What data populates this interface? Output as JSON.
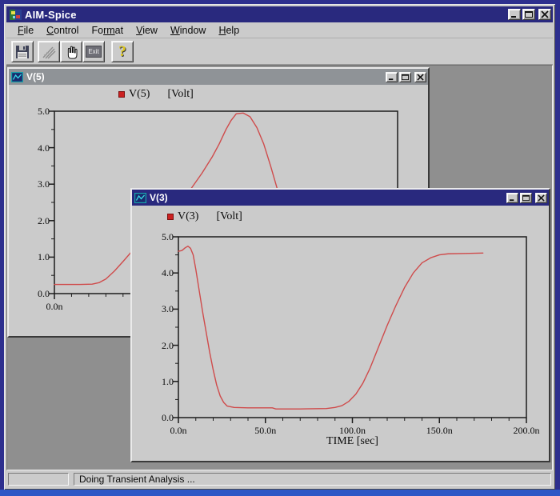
{
  "app": {
    "title": "AIM-Spice"
  },
  "menu": {
    "items": [
      {
        "pre": "",
        "key": "F",
        "post": "ile"
      },
      {
        "pre": "",
        "key": "C",
        "post": "ontrol"
      },
      {
        "pre": "Fo",
        "key": "rm",
        "post": "at"
      },
      {
        "pre": "",
        "key": "V",
        "post": "iew"
      },
      {
        "pre": "",
        "key": "W",
        "post": "indow"
      },
      {
        "pre": "",
        "key": "H",
        "post": "elp"
      }
    ]
  },
  "toolbar": {
    "exit_label": "Exit",
    "help_glyph": "?"
  },
  "windows": {
    "v5": {
      "title": "V(5)",
      "legend_series": "V(5)",
      "legend_unit": "[Volt]"
    },
    "v3": {
      "title": "V(3)",
      "legend_series": "V(3)",
      "legend_unit": "[Volt]",
      "xlabel": "TIME [sec]"
    }
  },
  "status": {
    "message": "Doing Transient Analysis ..."
  },
  "colors": {
    "titlebar": "#29297e",
    "inactive_titlebar": "#8f9397",
    "curve": "#cf4b4b",
    "legend_marker": "#cc2121",
    "mdi_background": "#8f8f8f",
    "window_face": "#cbcbcb"
  },
  "chart_data": [
    {
      "id": "v5",
      "type": "line",
      "title": "V(5)",
      "ylabel": "Volt",
      "xlim": [
        0,
        200
      ],
      "ylim": [
        0,
        5
      ],
      "x_minor_step": 10,
      "y_minor_step": 0.5,
      "x_major_ticks": [
        0,
        50,
        100,
        150,
        200
      ],
      "y_major_ticks": [
        0,
        1,
        2,
        3,
        4,
        5
      ],
      "y_tick_labels": [
        "0.0",
        "1.0",
        "2.0",
        "3.0",
        "4.0",
        "5.0"
      ],
      "x_label_ticks": [
        0
      ],
      "x_tick_labels": [
        "0.0n"
      ],
      "legend_position": "top-left",
      "grid": false,
      "series": [
        {
          "name": "V(5)",
          "color": "#cf4b4b",
          "x": [
            0,
            15,
            22,
            26,
            30,
            35,
            40,
            45,
            50,
            56,
            62,
            68,
            74,
            80,
            86,
            92,
            96,
            100,
            103,
            106,
            110,
            114,
            118,
            122,
            126,
            130,
            135,
            140,
            145,
            150,
            155,
            160,
            170,
            200
          ],
          "y": [
            0.25,
            0.25,
            0.26,
            0.3,
            0.4,
            0.62,
            0.88,
            1.15,
            1.3,
            1.45,
            1.75,
            2.1,
            2.5,
            2.9,
            3.3,
            3.75,
            4.1,
            4.5,
            4.75,
            4.93,
            4.95,
            4.85,
            4.55,
            4.1,
            3.5,
            2.85,
            2.0,
            1.3,
            0.8,
            0.5,
            0.35,
            0.3,
            0.28,
            0.27
          ]
        }
      ]
    },
    {
      "id": "v3",
      "type": "line",
      "title": "V(3)",
      "xlabel": "TIME [sec]",
      "ylabel": "Volt",
      "xlim": [
        0,
        200
      ],
      "ylim": [
        0,
        5
      ],
      "x_minor_step": 10,
      "y_minor_step": 0.5,
      "x_major_ticks": [
        0,
        50,
        100,
        150,
        200
      ],
      "y_major_ticks": [
        0,
        1,
        2,
        3,
        4,
        5
      ],
      "y_tick_labels": [
        "0.0",
        "1.0",
        "2.0",
        "3.0",
        "4.0",
        "5.0"
      ],
      "x_label_ticks": [
        0,
        50,
        100,
        150,
        200
      ],
      "x_tick_labels": [
        "0.0n",
        "50.0n",
        "100.0n",
        "150.0n",
        "200.0n"
      ],
      "legend_position": "top-left",
      "grid": false,
      "series": [
        {
          "name": "V(3)",
          "color": "#cf4b4b",
          "x": [
            0,
            2,
            4,
            5.5,
            7,
            8.5,
            10,
            12,
            14,
            16,
            18,
            20,
            22,
            24,
            26,
            28,
            32,
            40,
            54,
            56,
            70,
            85,
            90,
            94,
            98,
            102,
            106,
            110,
            115,
            120,
            125,
            130,
            135,
            140,
            145,
            150,
            155,
            165,
            175
          ],
          "y": [
            4.6,
            4.62,
            4.7,
            4.74,
            4.68,
            4.5,
            4.1,
            3.5,
            2.9,
            2.35,
            1.8,
            1.32,
            0.9,
            0.6,
            0.42,
            0.32,
            0.28,
            0.27,
            0.27,
            0.24,
            0.24,
            0.25,
            0.28,
            0.33,
            0.45,
            0.65,
            0.95,
            1.35,
            1.95,
            2.55,
            3.1,
            3.6,
            4.0,
            4.28,
            4.42,
            4.5,
            4.53,
            4.54,
            4.55
          ]
        }
      ]
    }
  ]
}
